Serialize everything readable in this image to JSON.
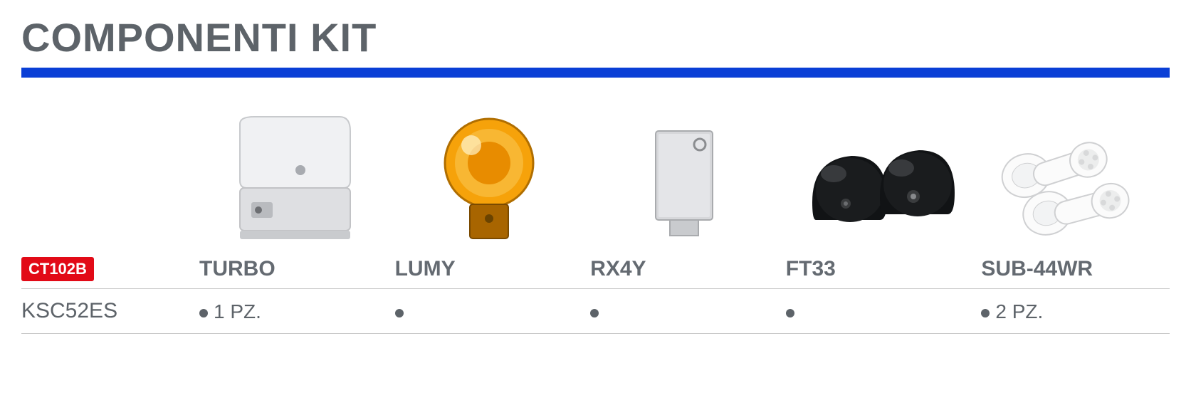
{
  "title": "COMPONENTI KIT",
  "colors": {
    "title_text": "#5d6369",
    "accent_bar": "#0a3fd6",
    "body_text": "#5d6369",
    "badge_bg": "#e20a17",
    "badge_text": "#ffffff",
    "divider": "#c9c9c9",
    "background": "#ffffff"
  },
  "typography": {
    "title_fontsize": 56,
    "header_fontsize": 30,
    "body_fontsize": 28,
    "badge_fontsize": 22
  },
  "components": [
    {
      "name": "TURBO",
      "icon": "motor",
      "desc": "sliding gate motor unit"
    },
    {
      "name": "LUMY",
      "icon": "lamp",
      "desc": "amber flashing lamp"
    },
    {
      "name": "RX4Y",
      "icon": "receiver",
      "desc": "radio receiver module"
    },
    {
      "name": "FT33",
      "icon": "photocell",
      "desc": "pair of photocells"
    },
    {
      "name": "SUB-44WR",
      "icon": "remote",
      "desc": "remote transmitters"
    }
  ],
  "badge_label": "CT102B",
  "kits": [
    {
      "code": "KSC52ES",
      "quantities": [
        "1 PZ.",
        "",
        "",
        "",
        "2 PZ."
      ],
      "included": [
        true,
        true,
        true,
        true,
        true
      ]
    }
  ]
}
